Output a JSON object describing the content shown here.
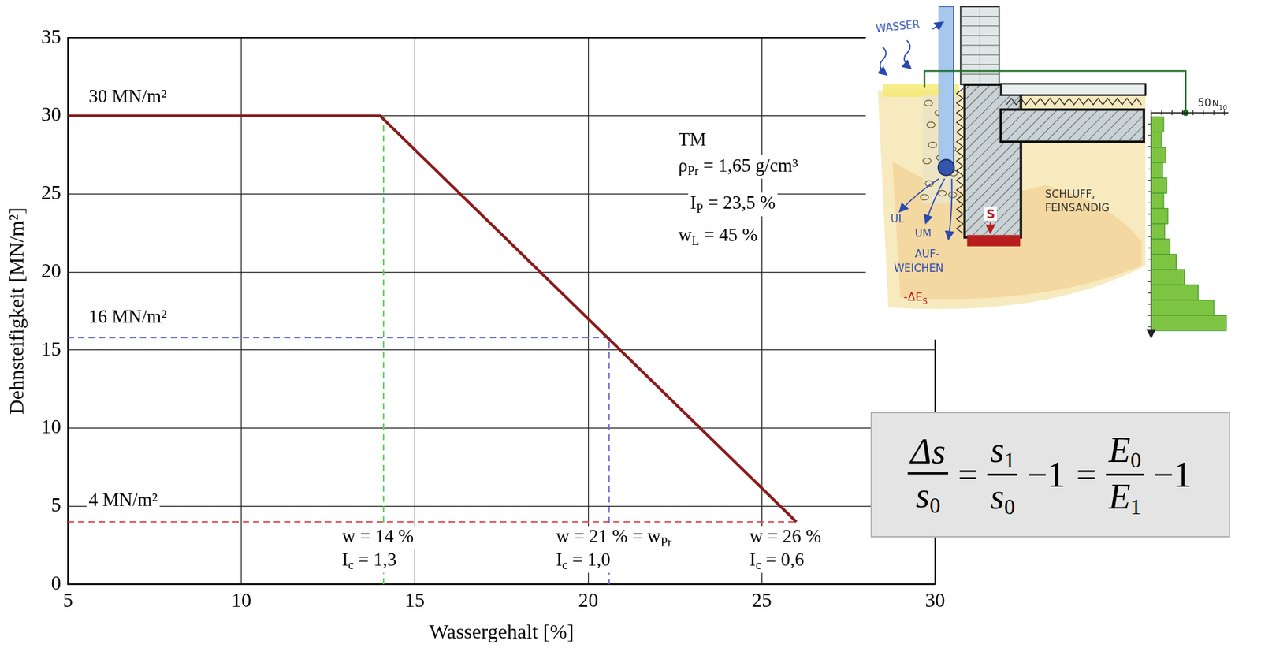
{
  "chart_data": {
    "type": "line",
    "x_label": "Wassergehalt [%]",
    "y_label": "Dehnsteifigkeit [MN/m²]",
    "xlim": [
      5,
      30
    ],
    "xticks": [
      5,
      10,
      15,
      20,
      25,
      30
    ],
    "ylim": [
      0,
      35
    ],
    "yticks": [
      0,
      5,
      10,
      15,
      20,
      25,
      30,
      35
    ],
    "grid": true,
    "series": [
      {
        "color": "#8b1a1a",
        "line_style": "solid",
        "x": [
          5,
          14,
          26
        ],
        "values": [
          30,
          30,
          4
        ]
      },
      {
        "color": "#5ccf5c",
        "line_style": "dashed",
        "x": [
          14.1,
          14.1
        ],
        "values": [
          0,
          30
        ]
      },
      {
        "color": "#6a6ad2",
        "line_style": "dashed",
        "x": [
          5,
          20.6,
          20.6
        ],
        "values": [
          15.8,
          15.8,
          0
        ]
      },
      {
        "color": "#e04848",
        "line_style": "dashed",
        "x": [
          5,
          26
        ],
        "values": [
          4,
          4
        ]
      }
    ],
    "annotations": [
      {
        "x": 5.6,
        "y": 31.2,
        "runs": [
          {
            "t": "30 MN/m²"
          }
        ]
      },
      {
        "x": 5.6,
        "y": 17.05,
        "runs": [
          {
            "t": "16 MN/m²"
          }
        ]
      },
      {
        "x": 5.6,
        "y": 5.35,
        "runs": [
          {
            "t": "4 MN/m²"
          }
        ]
      },
      {
        "x": 22.6,
        "y": 28.4,
        "runs": [
          {
            "t": "TM"
          }
        ]
      },
      {
        "x": 22.6,
        "y": 26.76,
        "runs": [
          {
            "t": "ρ"
          },
          {
            "t": "Pr",
            "sub": true
          },
          {
            "t": " = 1,65 g/cm³"
          }
        ]
      },
      {
        "x": 22.94,
        "y": 24.35,
        "runs": [
          {
            "t": "I"
          },
          {
            "t": "P",
            "sub": true
          },
          {
            "t": " = 23,5 %"
          }
        ]
      },
      {
        "x": 22.6,
        "y": 22.3,
        "runs": [
          {
            "t": "w"
          },
          {
            "t": "L",
            "sub": true
          },
          {
            "t": " = 45 %"
          }
        ]
      },
      {
        "x": 12.9,
        "y": 2.99,
        "runs": [
          {
            "t": "w = 14 %"
          }
        ]
      },
      {
        "x": 12.9,
        "y": 1.52,
        "runs": [
          {
            "t": "I"
          },
          {
            "t": "c",
            "sub": true
          },
          {
            "t": " = 1,3"
          }
        ]
      },
      {
        "x": 19.07,
        "y": 2.99,
        "runs": [
          {
            "t": "w = 21 % = w"
          },
          {
            "t": "Pr",
            "sub": true
          }
        ]
      },
      {
        "x": 19.07,
        "y": 1.52,
        "runs": [
          {
            "t": "I"
          },
          {
            "t": "c",
            "sub": true
          },
          {
            "t": " = 1,0"
          }
        ]
      },
      {
        "x": 24.65,
        "y": 2.99,
        "runs": [
          {
            "t": "w = 26 %"
          }
        ]
      },
      {
        "x": 24.65,
        "y": 1.52,
        "runs": [
          {
            "t": "I"
          },
          {
            "t": "c",
            "sub": true
          },
          {
            "t": " = 0,6"
          }
        ]
      }
    ]
  },
  "formula": {
    "terms": [
      {
        "num": [
          {
            "t": "Δs"
          }
        ],
        "den": [
          {
            "t": "s"
          },
          {
            "t": "0",
            "sub": true
          }
        ]
      },
      {
        "op": "="
      },
      {
        "num": [
          {
            "t": "s"
          },
          {
            "t": "1",
            "sub": true
          }
        ],
        "den": [
          {
            "t": "s"
          },
          {
            "t": "0",
            "sub": true
          }
        ]
      },
      {
        "op": "−1"
      },
      {
        "op": "="
      },
      {
        "num": [
          {
            "t": "E"
          },
          {
            "t": "0",
            "sub": true
          }
        ],
        "den": [
          {
            "t": "E"
          },
          {
            "t": "1",
            "sub": true
          }
        ]
      },
      {
        "op": "−1"
      }
    ]
  },
  "sketch": {
    "water": [
      {
        "t": "WASSER"
      }
    ],
    "soil": [
      "SCHLUFF,",
      "FEINSANDIG"
    ],
    "ul": [
      {
        "t": "UL"
      }
    ],
    "um": [
      {
        "t": "UM"
      }
    ],
    "softening": [
      "AUF-",
      "WEICHEN"
    ],
    "delta_es": [
      {
        "t": "-ΔE"
      },
      {
        "t": "S",
        "sub": true
      }
    ],
    "settlement": [
      {
        "t": "S"
      }
    ],
    "scale_tick": 50,
    "scale_label": [
      {
        "t": "N"
      },
      {
        "t": "10",
        "sub": true
      }
    ],
    "n10": [
      12,
      10,
      14,
      11,
      15,
      12,
      16,
      13,
      18,
      24,
      32,
      45,
      60,
      72
    ]
  }
}
